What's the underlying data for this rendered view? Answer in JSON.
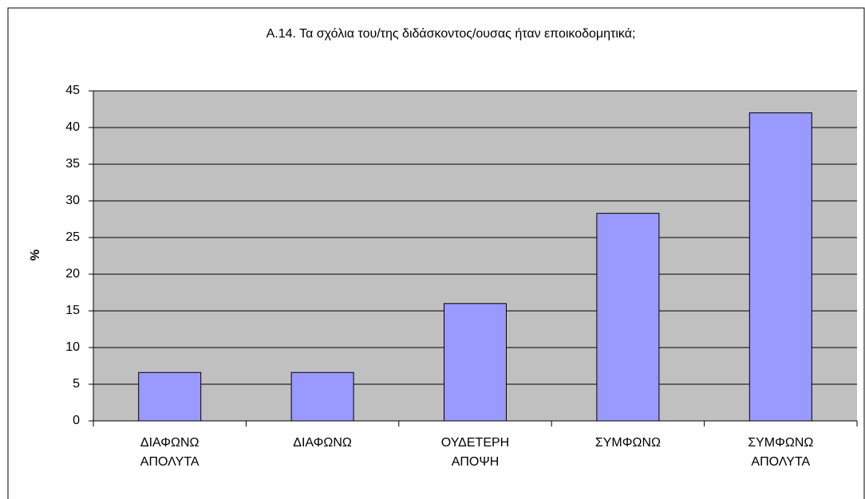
{
  "chart_data": {
    "type": "bar",
    "title": "Α.14. Τα σχόλια του/της διδάσκοντος/ουσας ήταν εποικοδομητικά;",
    "y_label": "%",
    "categories": [
      "ΔΙΑΦΩΝΩ ΑΠΟΛΥΤΑ",
      "ΔΙΑΦΩΝΩ",
      "ΟΥΔΕΤΕΡΗ ΑΠΟΨΗ",
      "ΣΥΜΦΩΝΩ",
      "ΣΥΜΦΩΝΩ ΑΠΟΛΥΤΑ"
    ],
    "values": [
      6.6,
      6.6,
      16.0,
      28.3,
      42.0
    ],
    "color": "#9999ff",
    "ylim": [
      0,
      45
    ],
    "yticks": [
      0,
      5,
      10,
      15,
      20,
      25,
      30,
      35,
      40,
      45
    ],
    "grid": true
  }
}
